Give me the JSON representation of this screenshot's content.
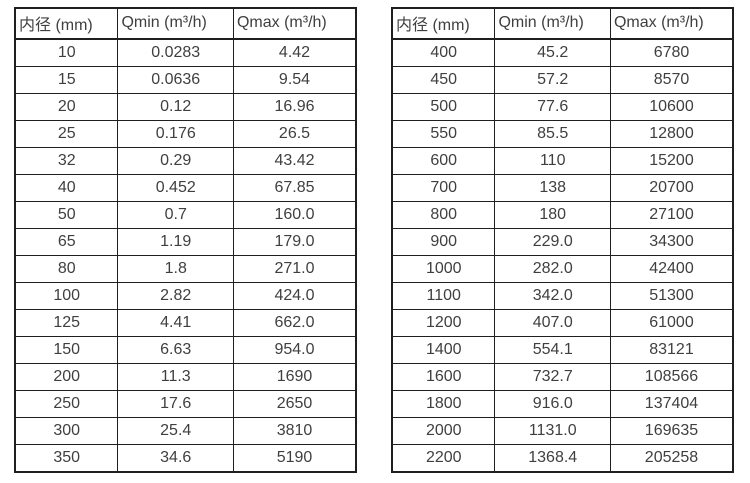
{
  "colors": {
    "background": "#ffffff",
    "border": "#1f1f1f",
    "text": "#3f3f3f"
  },
  "chart_data": [
    {
      "type": "table",
      "columns": [
        "内径 (mm)",
        "Qmin (m³/h)",
        "Qmax (m³/h)"
      ],
      "rows": [
        [
          "10",
          "0.0283",
          "4.42"
        ],
        [
          "15",
          "0.0636",
          "9.54"
        ],
        [
          "20",
          "0.12",
          "16.96"
        ],
        [
          "25",
          "0.176",
          "26.5"
        ],
        [
          "32",
          "0.29",
          "43.42"
        ],
        [
          "40",
          "0.452",
          "67.85"
        ],
        [
          "50",
          "0.7",
          "160.0"
        ],
        [
          "65",
          "1.19",
          "179.0"
        ],
        [
          "80",
          "1.8",
          "271.0"
        ],
        [
          "100",
          "2.82",
          "424.0"
        ],
        [
          "125",
          "4.41",
          "662.0"
        ],
        [
          "150",
          "6.63",
          "954.0"
        ],
        [
          "200",
          "11.3",
          "1690"
        ],
        [
          "250",
          "17.6",
          "2650"
        ],
        [
          "300",
          "25.4",
          "3810"
        ],
        [
          "350",
          "34.6",
          "5190"
        ]
      ]
    },
    {
      "type": "table",
      "columns": [
        "内径 (mm)",
        "Qmin (m³/h)",
        "Qmax (m³/h)"
      ],
      "rows": [
        [
          "400",
          "45.2",
          "6780"
        ],
        [
          "450",
          "57.2",
          "8570"
        ],
        [
          "500",
          "77.6",
          "10600"
        ],
        [
          "550",
          "85.5",
          "12800"
        ],
        [
          "600",
          "110",
          "15200"
        ],
        [
          "700",
          "138",
          "20700"
        ],
        [
          "800",
          "180",
          "27100"
        ],
        [
          "900",
          "229.0",
          "34300"
        ],
        [
          "1000",
          "282.0",
          "42400"
        ],
        [
          "1100",
          "342.0",
          "51300"
        ],
        [
          "1200",
          "407.0",
          "61000"
        ],
        [
          "1400",
          "554.1",
          "83121"
        ],
        [
          "1600",
          "732.7",
          "108566"
        ],
        [
          "1800",
          "916.0",
          "137404"
        ],
        [
          "2000",
          "1131.0",
          "169635"
        ],
        [
          "2200",
          "1368.4",
          "205258"
        ]
      ]
    }
  ]
}
